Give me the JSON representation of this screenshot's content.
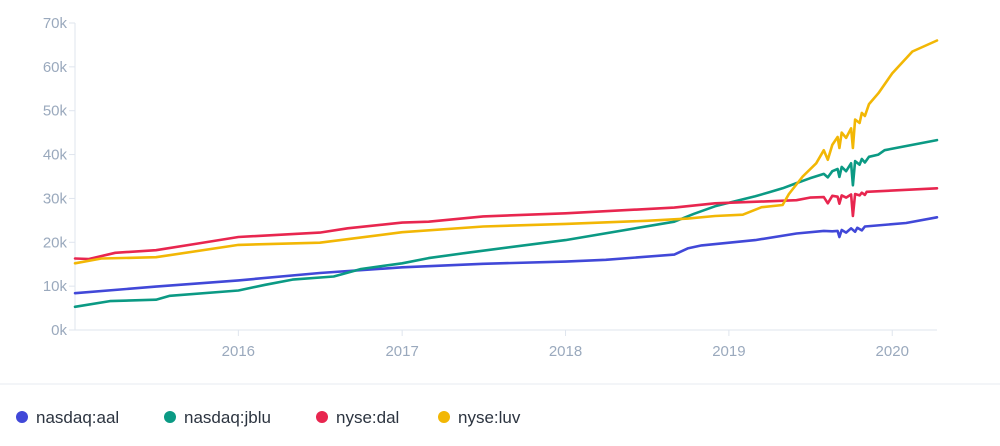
{
  "chart_data": {
    "type": "line",
    "title": "",
    "xlabel": "",
    "ylabel": "",
    "x_ticks": [
      "2016",
      "2017",
      "2018",
      "2019",
      "2020"
    ],
    "y_ticks": [
      "0k",
      "10k",
      "20k",
      "30k",
      "40k",
      "50k",
      "60k",
      "70k"
    ],
    "xlim": [
      "2015-01-01",
      "2020-04-10"
    ],
    "ylim": [
      0,
      70000
    ],
    "grid": false,
    "legend_position": "bottom",
    "series": [
      {
        "name": "nasdaq:aal",
        "color": "#4148d8",
        "points": [
          [
            "2015-01-01",
            8400
          ],
          [
            "2015-07-01",
            9900
          ],
          [
            "2016-01-01",
            11300
          ],
          [
            "2016-07-01",
            13000
          ],
          [
            "2017-01-01",
            14300
          ],
          [
            "2017-07-01",
            15100
          ],
          [
            "2018-01-01",
            15600
          ],
          [
            "2018-04-01",
            16000
          ],
          [
            "2018-09-01",
            17200
          ],
          [
            "2018-10-01",
            18600
          ],
          [
            "2018-11-01",
            19300
          ],
          [
            "2019-03-01",
            20500
          ],
          [
            "2019-06-01",
            22000
          ],
          [
            "2019-08-01",
            22600
          ],
          [
            "2019-08-20",
            22500
          ],
          [
            "2019-09-01",
            22600
          ],
          [
            "2019-09-05",
            21200
          ],
          [
            "2019-09-10",
            22800
          ],
          [
            "2019-09-20",
            22200
          ],
          [
            "2019-10-01",
            23200
          ],
          [
            "2019-10-10",
            22400
          ],
          [
            "2019-10-15",
            23300
          ],
          [
            "2019-10-25",
            22700
          ],
          [
            "2019-11-01",
            23600
          ],
          [
            "2020-02-01",
            24400
          ],
          [
            "2020-04-10",
            25700
          ]
        ]
      },
      {
        "name": "nasdaq:jblu",
        "color": "#0b9a84",
        "points": [
          [
            "2015-01-01",
            5300
          ],
          [
            "2015-03-20",
            6600
          ],
          [
            "2015-07-01",
            6900
          ],
          [
            "2015-08-01",
            7800
          ],
          [
            "2016-01-01",
            9000
          ],
          [
            "2016-03-01",
            10300
          ],
          [
            "2016-05-01",
            11500
          ],
          [
            "2016-08-01",
            12200
          ],
          [
            "2016-10-01",
            13900
          ],
          [
            "2017-01-01",
            15200
          ],
          [
            "2017-03-01",
            16400
          ],
          [
            "2017-06-01",
            17700
          ],
          [
            "2018-01-01",
            20500
          ],
          [
            "2018-09-01",
            24700
          ],
          [
            "2018-10-15",
            26500
          ],
          [
            "2018-12-01",
            28200
          ],
          [
            "2019-01-01",
            29000
          ],
          [
            "2019-03-01",
            30500
          ],
          [
            "2019-04-01",
            31400
          ],
          [
            "2019-05-01",
            32300
          ],
          [
            "2019-06-01",
            33500
          ],
          [
            "2019-07-01",
            34600
          ],
          [
            "2019-08-01",
            35600
          ],
          [
            "2019-08-10",
            34800
          ],
          [
            "2019-08-20",
            36200
          ],
          [
            "2019-09-01",
            36700
          ],
          [
            "2019-09-05",
            34900
          ],
          [
            "2019-09-10",
            37200
          ],
          [
            "2019-09-20",
            36200
          ],
          [
            "2019-10-01",
            38000
          ],
          [
            "2019-10-05",
            33000
          ],
          [
            "2019-10-10",
            38500
          ],
          [
            "2019-10-20",
            37700
          ],
          [
            "2019-10-25",
            39000
          ],
          [
            "2019-11-01",
            38200
          ],
          [
            "2019-11-10",
            39500
          ],
          [
            "2019-12-01",
            40000
          ],
          [
            "2019-12-15",
            41000
          ],
          [
            "2020-04-10",
            43300
          ]
        ]
      },
      {
        "name": "nyse:dal",
        "color": "#e8264f",
        "points": [
          [
            "2015-01-01",
            16300
          ],
          [
            "2015-02-01",
            16200
          ],
          [
            "2015-04-01",
            17600
          ],
          [
            "2015-07-01",
            18200
          ],
          [
            "2015-10-01",
            19700
          ],
          [
            "2016-01-01",
            21200
          ],
          [
            "2016-07-01",
            22200
          ],
          [
            "2016-09-01",
            23200
          ],
          [
            "2017-01-01",
            24500
          ],
          [
            "2017-03-01",
            24700
          ],
          [
            "2017-07-01",
            25900
          ],
          [
            "2018-01-01",
            26600
          ],
          [
            "2018-09-01",
            27900
          ],
          [
            "2018-12-01",
            28900
          ],
          [
            "2019-06-01",
            29600
          ],
          [
            "2019-07-01",
            30200
          ],
          [
            "2019-08-01",
            30300
          ],
          [
            "2019-08-10",
            28900
          ],
          [
            "2019-08-20",
            30600
          ],
          [
            "2019-09-01",
            30400
          ],
          [
            "2019-09-05",
            28800
          ],
          [
            "2019-09-10",
            30700
          ],
          [
            "2019-09-20",
            30200
          ],
          [
            "2019-10-01",
            30900
          ],
          [
            "2019-10-05",
            26000
          ],
          [
            "2019-10-10",
            31000
          ],
          [
            "2019-10-20",
            30700
          ],
          [
            "2019-10-25",
            31300
          ],
          [
            "2019-11-01",
            30800
          ],
          [
            "2019-11-05",
            31500
          ],
          [
            "2020-04-10",
            32300
          ]
        ]
      },
      {
        "name": "nyse:luv",
        "color": "#f2b705",
        "points": [
          [
            "2015-01-01",
            15200
          ],
          [
            "2015-03-01",
            16300
          ],
          [
            "2015-07-01",
            16600
          ],
          [
            "2016-01-01",
            19400
          ],
          [
            "2016-07-01",
            19900
          ],
          [
            "2017-01-01",
            22300
          ],
          [
            "2017-07-01",
            23600
          ],
          [
            "2018-01-01",
            24200
          ],
          [
            "2018-07-01",
            24900
          ],
          [
            "2018-10-01",
            25400
          ],
          [
            "2018-12-01",
            26000
          ],
          [
            "2019-02-01",
            26300
          ],
          [
            "2019-03-15",
            28000
          ],
          [
            "2019-05-01",
            28500
          ],
          [
            "2019-05-15",
            31000
          ],
          [
            "2019-06-15",
            35000
          ],
          [
            "2019-07-15",
            38000
          ],
          [
            "2019-08-01",
            41000
          ],
          [
            "2019-08-10",
            38800
          ],
          [
            "2019-08-20",
            42200
          ],
          [
            "2019-09-01",
            44000
          ],
          [
            "2019-09-05",
            41500
          ],
          [
            "2019-09-10",
            45000
          ],
          [
            "2019-09-20",
            43800
          ],
          [
            "2019-10-01",
            46000
          ],
          [
            "2019-10-05",
            41500
          ],
          [
            "2019-10-10",
            48000
          ],
          [
            "2019-10-20",
            47200
          ],
          [
            "2019-10-25",
            49500
          ],
          [
            "2019-11-01",
            48800
          ],
          [
            "2019-11-10",
            51500
          ],
          [
            "2019-12-01",
            54000
          ],
          [
            "2020-01-01",
            58500
          ],
          [
            "2020-02-15",
            63500
          ],
          [
            "2020-04-10",
            66000
          ]
        ]
      }
    ]
  }
}
